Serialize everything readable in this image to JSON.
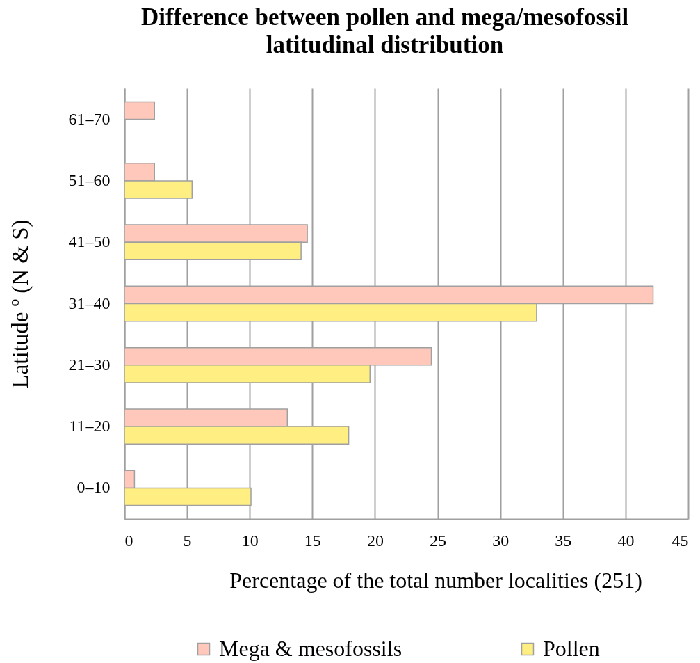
{
  "chart_data": {
    "type": "bar",
    "orientation": "horizontal",
    "title": "Difference between pollen and mega/mesofossil latitudinal distribution",
    "xlabel": "Percentage of the total number localities (251)",
    "ylabel": "Latitude º  (N & S)",
    "categories": [
      "61–70",
      "51–60",
      "41–50",
      "31–40",
      "21–30",
      "11–20",
      "0–10"
    ],
    "series": [
      {
        "name": "Mega & mesofossils",
        "color": "#ffc8bb",
        "values": [
          2.4,
          2.4,
          14.6,
          42.2,
          24.5,
          13.0,
          0.8
        ]
      },
      {
        "name": "Pollen",
        "color": "#ffee82",
        "values": [
          null,
          5.4,
          14.1,
          32.9,
          19.6,
          17.9,
          10.1
        ]
      }
    ],
    "xlim": [
      0,
      45
    ],
    "xticks": [
      0,
      5,
      10,
      15,
      20,
      25,
      30,
      35,
      40,
      45
    ],
    "grid": "x",
    "legend": "bottom"
  }
}
